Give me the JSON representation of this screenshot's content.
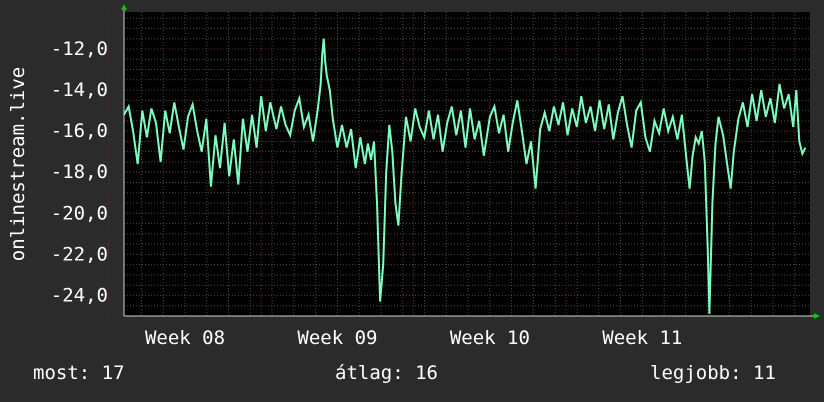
{
  "colors": {
    "background": "#2b2b2b",
    "plot_background": "#000000",
    "line": "#7fffbf",
    "grid_major": "#6a2a2a",
    "grid_minor": "#4a4a4a",
    "axis_arrow": "#00cc00",
    "text": "#ffffff"
  },
  "summary": {
    "most": "most: 17",
    "atlag": "átlag: 16",
    "legjobb": "legjobb: 11"
  },
  "chart_data": {
    "type": "line",
    "title": "",
    "ylabel": "onlinestream.live",
    "xlabel": "",
    "ylim": [
      -25,
      -10.2
    ],
    "y_ticks": [
      -24,
      -22,
      -20,
      -18,
      -16,
      -14,
      -12
    ],
    "y_tick_labels": [
      "-24,0",
      "-22,0",
      "-20,0",
      "-18,0",
      "-16,0",
      "-14,0",
      "-12,0"
    ],
    "x_range_weeks": [
      7.6,
      12.1
    ],
    "x_ticks": [
      8,
      9,
      10,
      11
    ],
    "x_tick_labels": [
      "Week 08",
      "Week 09",
      "Week 10",
      "Week 11"
    ],
    "grid": true,
    "series": [
      {
        "points": [
          [
            7.6,
            -15.2
          ],
          [
            7.63,
            -14.8
          ],
          [
            7.66,
            -16.0
          ],
          [
            7.69,
            -17.6
          ],
          [
            7.72,
            -15.0
          ],
          [
            7.75,
            -16.3
          ],
          [
            7.78,
            -14.9
          ],
          [
            7.81,
            -15.6
          ],
          [
            7.84,
            -17.5
          ],
          [
            7.87,
            -15.0
          ],
          [
            7.9,
            -16.1
          ],
          [
            7.93,
            -14.6
          ],
          [
            7.96,
            -15.8
          ],
          [
            7.99,
            -16.9
          ],
          [
            8.02,
            -15.3
          ],
          [
            8.05,
            -14.7
          ],
          [
            8.08,
            -16.0
          ],
          [
            8.11,
            -17.0
          ],
          [
            8.14,
            -15.4
          ],
          [
            8.17,
            -18.7
          ],
          [
            8.2,
            -16.2
          ],
          [
            8.23,
            -17.8
          ],
          [
            8.26,
            -15.6
          ],
          [
            8.29,
            -18.2
          ],
          [
            8.32,
            -16.4
          ],
          [
            8.35,
            -18.6
          ],
          [
            8.38,
            -15.4
          ],
          [
            8.41,
            -17.0
          ],
          [
            8.44,
            -15.2
          ],
          [
            8.47,
            -16.8
          ],
          [
            8.5,
            -14.3
          ],
          [
            8.53,
            -16.0
          ],
          [
            8.56,
            -14.6
          ],
          [
            8.6,
            -15.9
          ],
          [
            8.63,
            -14.8
          ],
          [
            8.66,
            -15.7
          ],
          [
            8.69,
            -16.2
          ],
          [
            8.72,
            -15.0
          ],
          [
            8.75,
            -14.4
          ],
          [
            8.78,
            -15.8
          ],
          [
            8.81,
            -15.2
          ],
          [
            8.84,
            -16.5
          ],
          [
            8.87,
            -15.0
          ],
          [
            8.89,
            -13.7
          ],
          [
            8.9,
            -12.3
          ],
          [
            8.91,
            -11.5
          ],
          [
            8.92,
            -12.6
          ],
          [
            8.93,
            -13.3
          ],
          [
            8.95,
            -14.0
          ],
          [
            8.97,
            -15.4
          ],
          [
            9.0,
            -16.8
          ],
          [
            9.03,
            -15.7
          ],
          [
            9.06,
            -16.8
          ],
          [
            9.09,
            -15.9
          ],
          [
            9.12,
            -17.8
          ],
          [
            9.15,
            -16.3
          ],
          [
            9.18,
            -17.6
          ],
          [
            9.2,
            -16.6
          ],
          [
            9.22,
            -17.4
          ],
          [
            9.24,
            -16.5
          ],
          [
            9.26,
            -19.6
          ],
          [
            9.28,
            -24.3
          ],
          [
            9.3,
            -22.5
          ],
          [
            9.32,
            -18.0
          ],
          [
            9.34,
            -15.7
          ],
          [
            9.36,
            -17.0
          ],
          [
            9.38,
            -19.5
          ],
          [
            9.4,
            -20.6
          ],
          [
            9.42,
            -18.2
          ],
          [
            9.45,
            -15.3
          ],
          [
            9.48,
            -16.5
          ],
          [
            9.51,
            -14.9
          ],
          [
            9.54,
            -15.8
          ],
          [
            9.57,
            -16.3
          ],
          [
            9.6,
            -15.0
          ],
          [
            9.63,
            -16.4
          ],
          [
            9.66,
            -15.2
          ],
          [
            9.69,
            -17.0
          ],
          [
            9.72,
            -15.6
          ],
          [
            9.75,
            -14.8
          ],
          [
            9.78,
            -16.2
          ],
          [
            9.81,
            -15.0
          ],
          [
            9.84,
            -16.8
          ],
          [
            9.87,
            -14.9
          ],
          [
            9.9,
            -16.4
          ],
          [
            9.93,
            -15.5
          ],
          [
            9.96,
            -17.2
          ],
          [
            10.0,
            -15.3
          ],
          [
            10.03,
            -14.8
          ],
          [
            10.06,
            -16.1
          ],
          [
            10.09,
            -15.2
          ],
          [
            10.12,
            -17.0
          ],
          [
            10.15,
            -15.6
          ],
          [
            10.18,
            -14.5
          ],
          [
            10.21,
            -16.0
          ],
          [
            10.24,
            -17.6
          ],
          [
            10.27,
            -16.5
          ],
          [
            10.3,
            -18.8
          ],
          [
            10.33,
            -15.9
          ],
          [
            10.36,
            -15.1
          ],
          [
            10.39,
            -16.0
          ],
          [
            10.42,
            -14.8
          ],
          [
            10.45,
            -15.7
          ],
          [
            10.48,
            -14.6
          ],
          [
            10.51,
            -16.2
          ],
          [
            10.54,
            -14.9
          ],
          [
            10.57,
            -15.8
          ],
          [
            10.6,
            -14.3
          ],
          [
            10.63,
            -15.6
          ],
          [
            10.66,
            -14.8
          ],
          [
            10.69,
            -16.0
          ],
          [
            10.72,
            -14.5
          ],
          [
            10.75,
            -15.9
          ],
          [
            10.78,
            -14.7
          ],
          [
            10.81,
            -16.4
          ],
          [
            10.84,
            -15.1
          ],
          [
            10.87,
            -14.3
          ],
          [
            10.9,
            -15.7
          ],
          [
            10.93,
            -16.8
          ],
          [
            10.96,
            -15.0
          ],
          [
            10.99,
            -14.6
          ],
          [
            11.02,
            -16.3
          ],
          [
            11.05,
            -17.0
          ],
          [
            11.08,
            -15.5
          ],
          [
            11.11,
            -16.1
          ],
          [
            11.14,
            -14.9
          ],
          [
            11.17,
            -16.0
          ],
          [
            11.2,
            -15.3
          ],
          [
            11.23,
            -16.4
          ],
          [
            11.26,
            -15.2
          ],
          [
            11.29,
            -17.4
          ],
          [
            11.31,
            -18.8
          ],
          [
            11.33,
            -17.2
          ],
          [
            11.35,
            -16.3
          ],
          [
            11.37,
            -16.6
          ],
          [
            11.39,
            -16.0
          ],
          [
            11.41,
            -17.5
          ],
          [
            11.43,
            -22.0
          ],
          [
            11.44,
            -24.9
          ],
          [
            11.46,
            -19.5
          ],
          [
            11.48,
            -16.6
          ],
          [
            11.5,
            -15.3
          ],
          [
            11.53,
            -16.2
          ],
          [
            11.56,
            -17.8
          ],
          [
            11.58,
            -18.8
          ],
          [
            11.6,
            -17.0
          ],
          [
            11.63,
            -15.4
          ],
          [
            11.66,
            -14.6
          ],
          [
            11.69,
            -15.8
          ],
          [
            11.72,
            -14.2
          ],
          [
            11.75,
            -15.5
          ],
          [
            11.78,
            -14.0
          ],
          [
            11.81,
            -15.3
          ],
          [
            11.84,
            -14.4
          ],
          [
            11.87,
            -15.6
          ],
          [
            11.9,
            -13.7
          ],
          [
            11.93,
            -14.9
          ],
          [
            11.96,
            -14.2
          ],
          [
            11.99,
            -15.8
          ],
          [
            12.01,
            -14.0
          ],
          [
            12.03,
            -16.5
          ],
          [
            12.05,
            -17.1
          ],
          [
            12.07,
            -16.8
          ]
        ]
      }
    ]
  }
}
